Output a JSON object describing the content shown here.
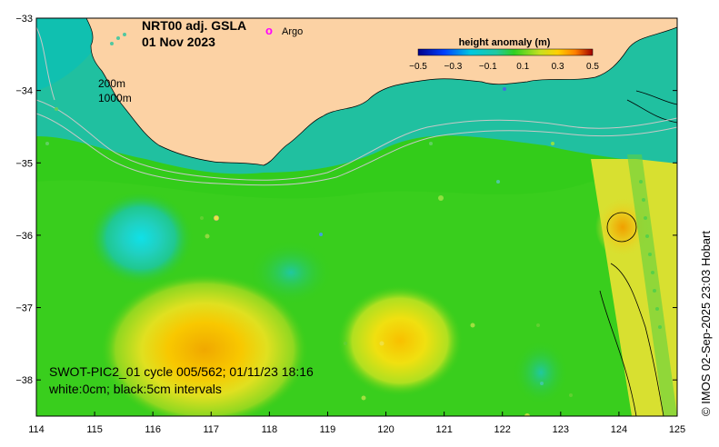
{
  "title": {
    "product": "NRT00 adj. GSLA",
    "date": "01 Nov 2023"
  },
  "legend": {
    "argo_marker": "o",
    "argo_label": "Argo",
    "argo_color": "#ff00ff"
  },
  "isobaths": [
    "200m",
    "1000m"
  ],
  "colorbar": {
    "title": "height anomaly (m)",
    "min": -0.5,
    "max": 0.5,
    "ticks": [
      "−0.5",
      "−0.3",
      "−0.1",
      "0.1",
      "0.3",
      "0.5"
    ]
  },
  "annotation": {
    "line1": "SWOT-PIC2_01 cycle 005/562; 01/11/23 18:16",
    "line2": "white:0cm; black:5cm intervals"
  },
  "credit": "© IMOS 02-Sep-2025 23:03 Hobart",
  "axes": {
    "x_ticks": [
      "114",
      "115",
      "116",
      "117",
      "118",
      "119",
      "120",
      "121",
      "122",
      "123",
      "124",
      "125"
    ],
    "y_ticks": [
      "−33",
      "−34",
      "−35",
      "−36",
      "−37",
      "−38"
    ],
    "lon_range": [
      114,
      125
    ],
    "lat_range": [
      -38.5,
      -33
    ]
  },
  "colors": {
    "land": "#fcd2a4",
    "ocean_base": "#33cc1a",
    "coast": "#000000"
  }
}
